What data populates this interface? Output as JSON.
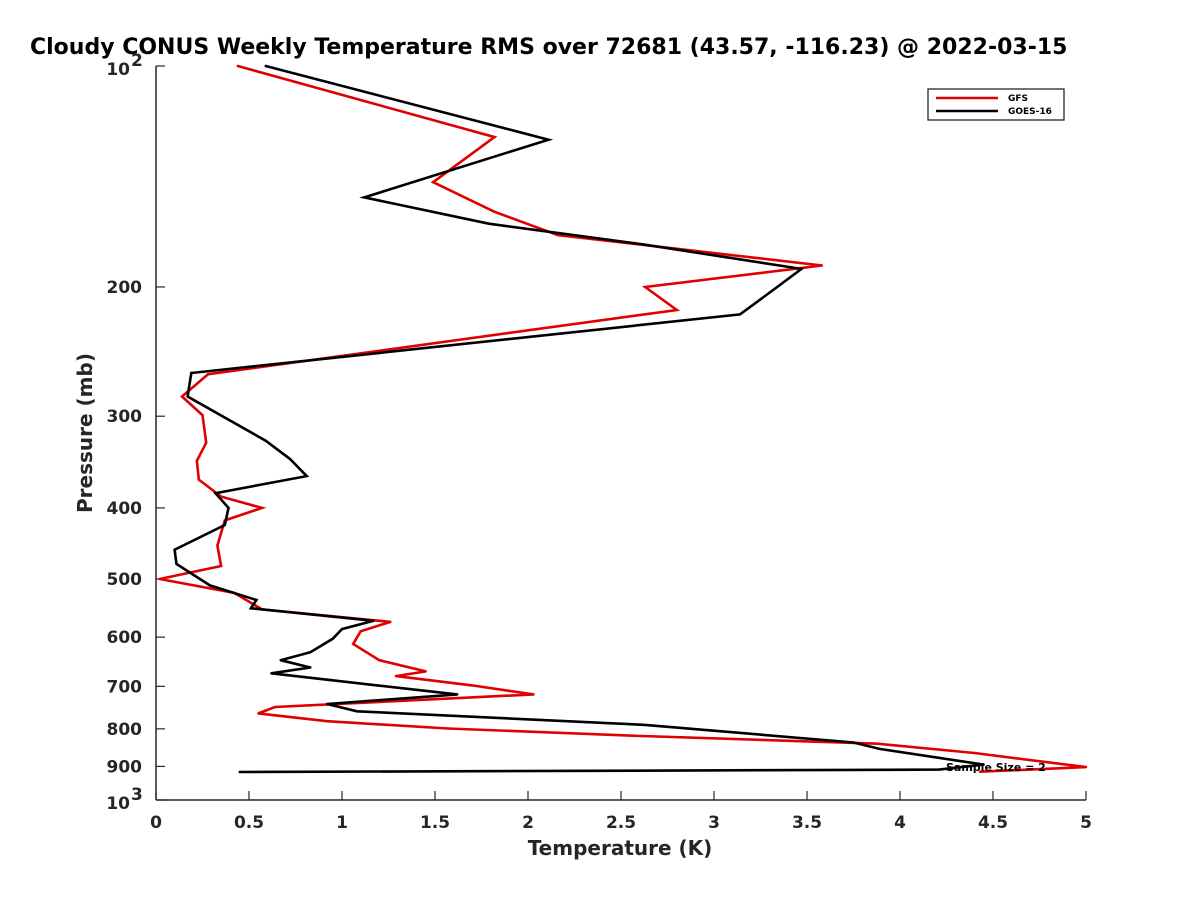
{
  "chart_data": {
    "type": "line",
    "title": "Cloudy CONUS Weekly Temperature RMS over 72681 (43.57, -116.23) @ 2022-03-15",
    "xlabel": "Temperature (K)",
    "ylabel": "Pressure (mb)",
    "xlim": [
      0,
      5
    ],
    "ylim": [
      100,
      1000
    ],
    "y_scale": "log",
    "y_reversed": true,
    "grid": false,
    "legend_position": "top-right",
    "x_ticks": [
      "0",
      "0.5",
      "1",
      "1.5",
      "2",
      "2.5",
      "3",
      "3.5",
      "4",
      "4.5",
      "5"
    ],
    "y_ticks": [
      {
        "value": 100,
        "base": "10",
        "exp": "2"
      },
      {
        "value": 200,
        "label": "200"
      },
      {
        "value": 300,
        "label": "300"
      },
      {
        "value": 400,
        "label": "400"
      },
      {
        "value": 500,
        "label": "500"
      },
      {
        "value": 600,
        "label": "600"
      },
      {
        "value": 700,
        "label": "700"
      },
      {
        "value": 800,
        "label": "800"
      },
      {
        "value": 900,
        "label": "900"
      },
      {
        "value": 1000,
        "base": "10",
        "exp": "3"
      }
    ],
    "annotation": "Sample Size = 2",
    "series": [
      {
        "name": "GFS",
        "color": "#e00000",
        "points": [
          [
            0.44,
            100
          ],
          [
            1.82,
            125
          ],
          [
            1.49,
            144
          ],
          [
            1.82,
            158
          ],
          [
            2.16,
            170
          ],
          [
            3.58,
            187
          ],
          [
            2.63,
            200
          ],
          [
            2.8,
            215
          ],
          [
            0.28,
            263
          ],
          [
            0.14,
            282
          ],
          [
            0.25,
            299
          ],
          [
            0.27,
            326
          ],
          [
            0.22,
            345
          ],
          [
            0.23,
            366
          ],
          [
            0.35,
            386
          ],
          [
            0.57,
            400
          ],
          [
            0.37,
            416
          ],
          [
            0.33,
            450
          ],
          [
            0.35,
            480
          ],
          [
            0.02,
            500
          ],
          [
            0.42,
            522
          ],
          [
            0.57,
            550
          ],
          [
            1.26,
            572
          ],
          [
            1.1,
            589
          ],
          [
            1.06,
            613
          ],
          [
            1.2,
            645
          ],
          [
            1.45,
            668
          ],
          [
            1.29,
            678
          ],
          [
            1.7,
            698
          ],
          [
            2.03,
            718
          ],
          [
            0.64,
            747
          ],
          [
            0.55,
            762
          ],
          [
            0.92,
            781
          ],
          [
            1.57,
            799
          ],
          [
            2.61,
            818
          ],
          [
            3.88,
            838
          ],
          [
            4.4,
            863
          ],
          [
            5.0,
            902
          ],
          [
            4.43,
            915
          ]
        ]
      },
      {
        "name": "GOES-16",
        "color": "#000000",
        "points": [
          [
            0.59,
            100
          ],
          [
            2.11,
            126
          ],
          [
            1.12,
            151
          ],
          [
            1.79,
            164
          ],
          [
            2.62,
            175
          ],
          [
            3.47,
            189
          ],
          [
            3.34,
            200
          ],
          [
            3.14,
            218
          ],
          [
            0.19,
            262
          ],
          [
            0.17,
            282
          ],
          [
            0.59,
            324
          ],
          [
            0.72,
            343
          ],
          [
            0.81,
            362
          ],
          [
            0.32,
            382
          ],
          [
            0.39,
            400
          ],
          [
            0.37,
            422
          ],
          [
            0.1,
            456
          ],
          [
            0.11,
            477
          ],
          [
            0.29,
            510
          ],
          [
            0.54,
            534
          ],
          [
            0.51,
            548
          ],
          [
            1.17,
            570
          ],
          [
            1.0,
            585
          ],
          [
            0.95,
            603
          ],
          [
            0.83,
            629
          ],
          [
            0.67,
            645
          ],
          [
            0.83,
            660
          ],
          [
            0.62,
            672
          ],
          [
            1.19,
            698
          ],
          [
            1.62,
            718
          ],
          [
            0.92,
            740
          ],
          [
            1.08,
            757
          ],
          [
            2.63,
            790
          ],
          [
            3.75,
            835
          ],
          [
            3.89,
            852
          ],
          [
            4.45,
            895
          ],
          [
            4.21,
            909
          ],
          [
            0.45,
            916
          ]
        ]
      }
    ]
  }
}
